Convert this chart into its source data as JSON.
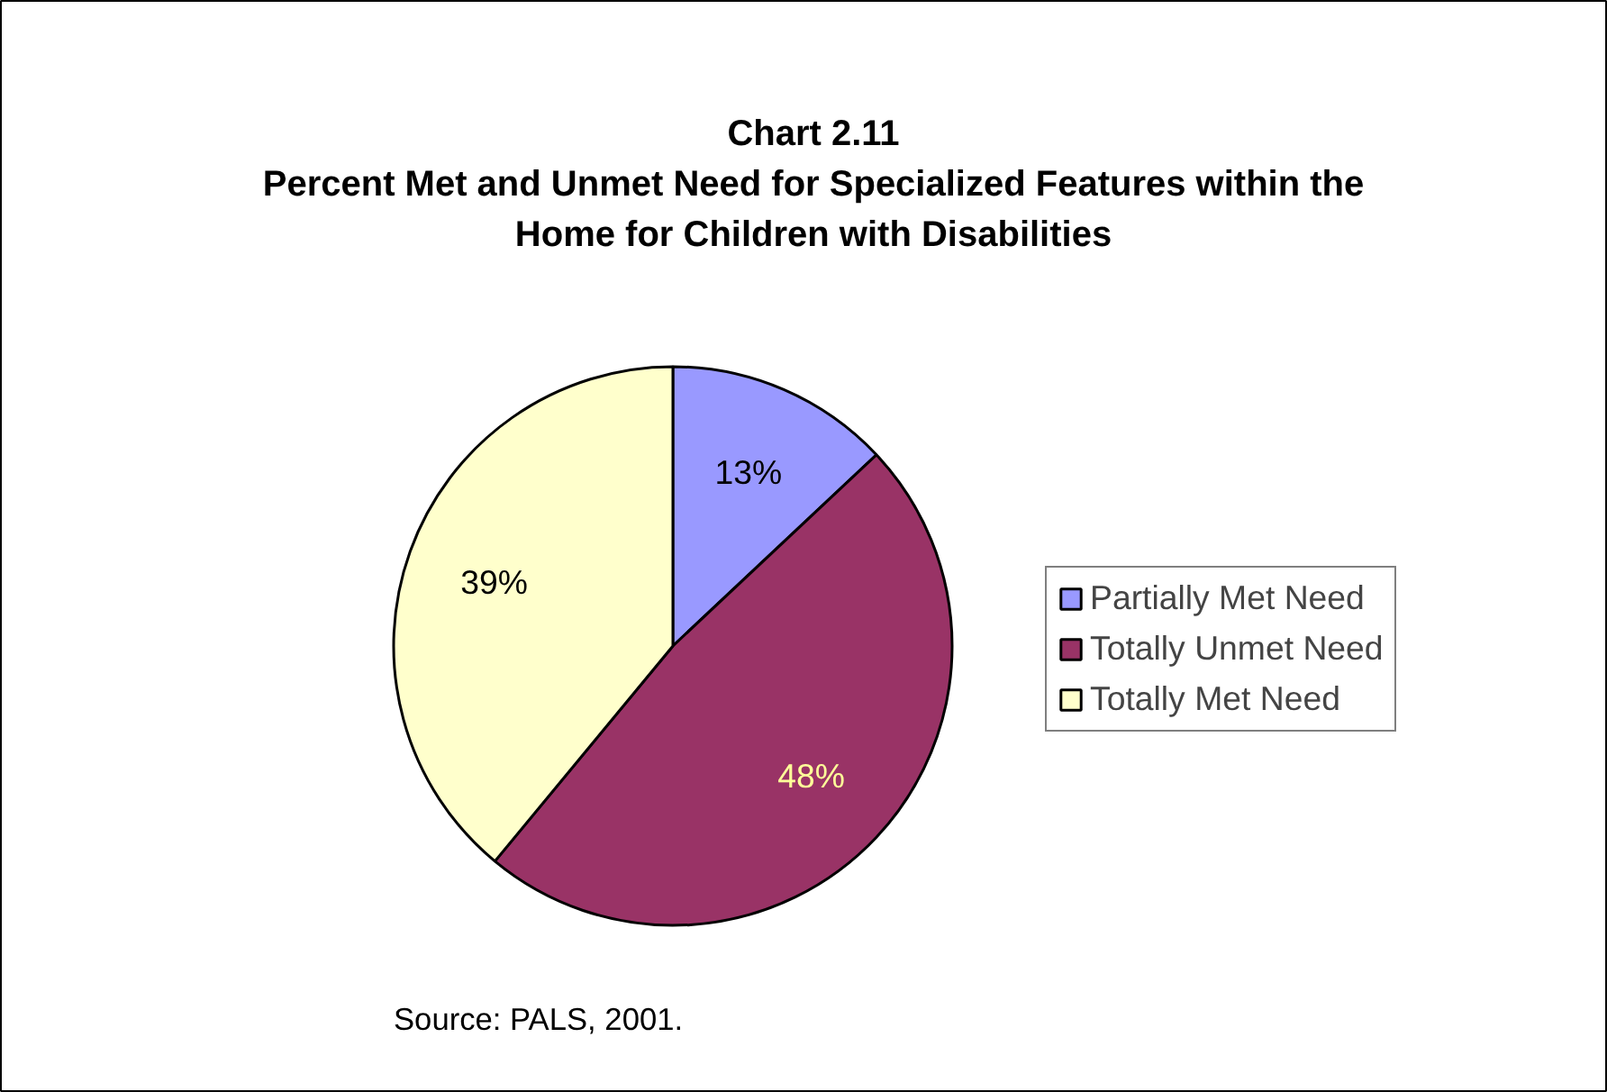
{
  "chart_data": {
    "type": "pie",
    "title": "Chart 2.11",
    "subtitle": "Percent Met and Unmet Need for Specialized Features within the Home for Children with Disabilities",
    "categories": [
      "Partially Met Need",
      "Totally Unmet Need",
      "Totally Met Need"
    ],
    "values": [
      13,
      48,
      39
    ],
    "colors": [
      "#9999ff",
      "#993366",
      "#ffffcc"
    ],
    "value_labels": [
      "13%",
      "48%",
      "39%"
    ],
    "legend": "right",
    "annotations": [
      "Source: PALS, 2001."
    ]
  }
}
